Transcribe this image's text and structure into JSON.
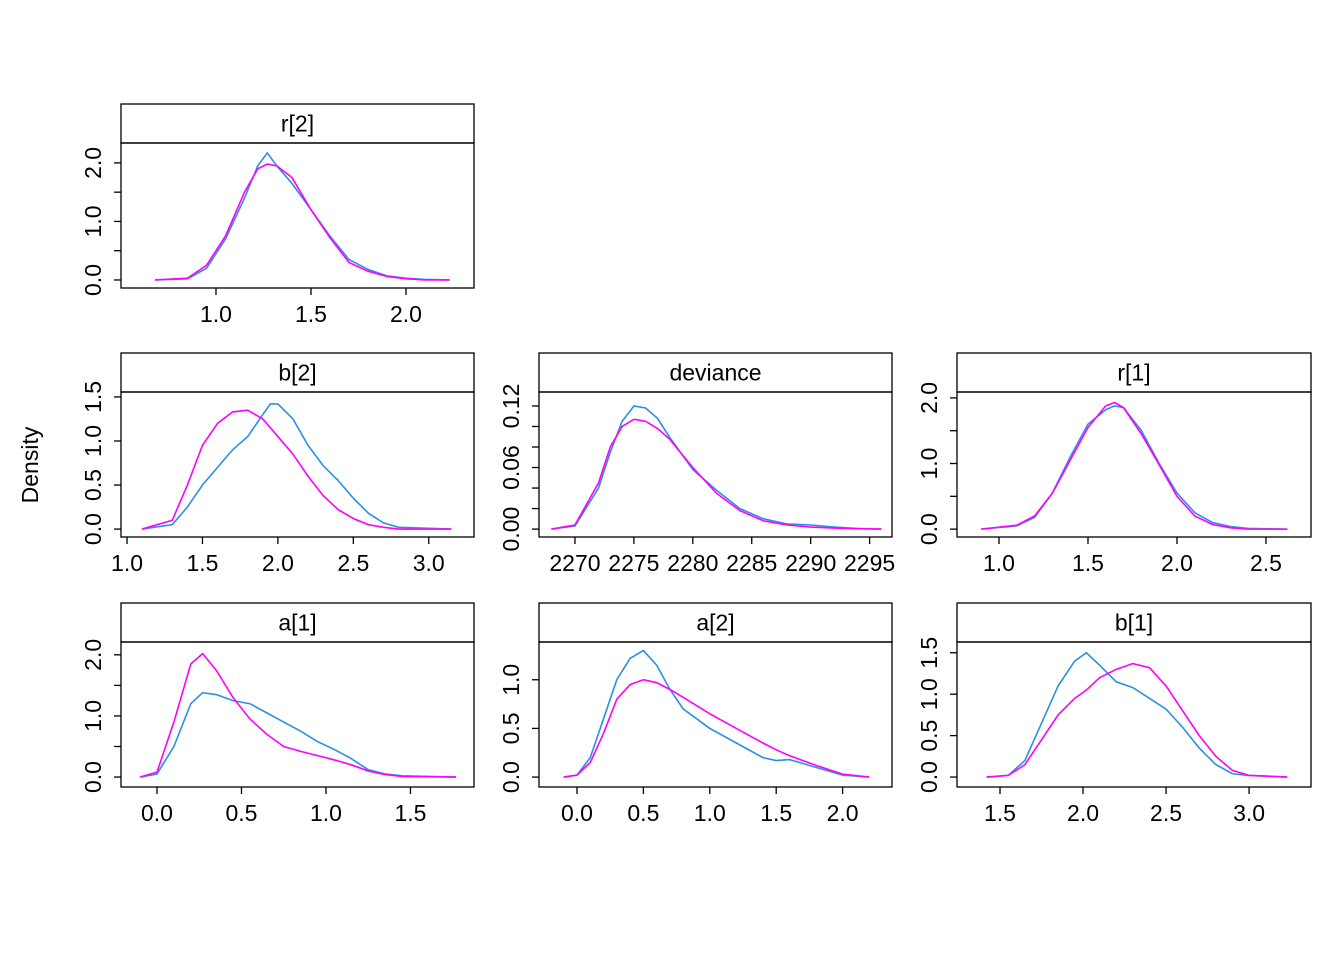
{
  "ylabel": "Density",
  "chart_data": [
    {
      "type": "line",
      "title": "r[2]",
      "x": [
        0.68,
        0.85,
        0.95,
        1.05,
        1.15,
        1.22,
        1.27,
        1.32,
        1.4,
        1.5,
        1.6,
        1.7,
        1.8,
        1.9,
        2.0,
        2.1,
        2.23
      ],
      "series": [
        {
          "color": "#2b8fe6",
          "values": [
            0,
            0.02,
            0.2,
            0.7,
            1.4,
            1.95,
            2.17,
            1.95,
            1.65,
            1.2,
            0.75,
            0.35,
            0.18,
            0.07,
            0.03,
            0.01,
            0
          ]
        },
        {
          "color": "#ff00ff",
          "values": [
            0,
            0.03,
            0.25,
            0.75,
            1.5,
            1.9,
            1.98,
            1.95,
            1.75,
            1.2,
            0.72,
            0.3,
            0.15,
            0.06,
            0.02,
            0.0,
            0
          ]
        }
      ],
      "xlim": [
        0.5,
        2.358
      ],
      "ylim": [
        -0.137,
        2.34
      ],
      "xticks": [
        {
          "value": 1,
          "label": "1.0"
        },
        {
          "value": 1.5,
          "label": "1.5"
        },
        {
          "value": 2,
          "label": "2.0"
        }
      ],
      "yticks": [
        {
          "value": 0,
          "label": "0.0"
        },
        {
          "value": 1,
          "label": "1.0"
        },
        {
          "value": 2,
          "label": "2.0"
        }
      ],
      "yminorticks": [
        0.5,
        1.5
      ]
    },
    {
      "type": "line",
      "title": "b[2]",
      "x": [
        1.1,
        1.3,
        1.4,
        1.5,
        1.6,
        1.7,
        1.8,
        1.9,
        1.95,
        2.0,
        2.1,
        2.2,
        2.3,
        2.4,
        2.5,
        2.6,
        2.7,
        2.8,
        3.15
      ],
      "series": [
        {
          "color": "#2b8fe6",
          "values": [
            0,
            0.05,
            0.25,
            0.5,
            0.7,
            0.9,
            1.05,
            1.3,
            1.42,
            1.42,
            1.25,
            0.95,
            0.72,
            0.55,
            0.35,
            0.18,
            0.07,
            0.02,
            0
          ]
        },
        {
          "color": "#ff00ff",
          "values": [
            0,
            0.1,
            0.5,
            0.95,
            1.2,
            1.33,
            1.35,
            1.25,
            1.15,
            1.05,
            0.85,
            0.6,
            0.38,
            0.22,
            0.12,
            0.05,
            0.02,
            0.0,
            0
          ]
        }
      ],
      "xlim": [
        0.96,
        3.3
      ],
      "ylim": [
        -0.09,
        1.556
      ],
      "xticks": [
        {
          "value": 1,
          "label": "1.0"
        },
        {
          "value": 1.5,
          "label": "1.5"
        },
        {
          "value": 2,
          "label": "2.0"
        },
        {
          "value": 2.5,
          "label": "2.5"
        },
        {
          "value": 3,
          "label": "3.0"
        }
      ],
      "yticks": [
        {
          "value": 0,
          "label": "0.0"
        },
        {
          "value": 0.5,
          "label": "0.5"
        },
        {
          "value": 1,
          "label": "1.0"
        },
        {
          "value": 1.5,
          "label": "1.5"
        }
      ]
    },
    {
      "type": "line",
      "title": "deviance",
      "x": [
        2268,
        2270,
        2272,
        2273,
        2274,
        2275,
        2276,
        2277,
        2278,
        2280,
        2282,
        2284,
        2286,
        2288,
        2290,
        2292,
        2294,
        2296
      ],
      "series": [
        {
          "color": "#2b8fe6",
          "values": [
            0,
            0.003,
            0.04,
            0.075,
            0.105,
            0.12,
            0.118,
            0.108,
            0.09,
            0.058,
            0.038,
            0.02,
            0.01,
            0.005,
            0.004,
            0.002,
            0.0005,
            0
          ]
        },
        {
          "color": "#ff00ff",
          "values": [
            0,
            0.004,
            0.045,
            0.08,
            0.1,
            0.107,
            0.105,
            0.098,
            0.088,
            0.06,
            0.035,
            0.018,
            0.008,
            0.004,
            0.002,
            0.001,
            0.0004,
            0
          ]
        }
      ],
      "xlim": [
        2266.95,
        2296.9
      ],
      "ylim": [
        -0.0077,
        0.1336
      ],
      "xticks": [
        2270,
        2275,
        2280,
        2285,
        2290,
        2295
      ],
      "yticks": [
        {
          "value": 0,
          "label": "0.00"
        },
        {
          "value": 0.06,
          "label": "0.06"
        },
        {
          "value": 0.12,
          "label": "0.12"
        }
      ],
      "yminorticks": [
        0.02,
        0.04,
        0.08,
        0.1
      ]
    },
    {
      "type": "line",
      "title": "r[1]",
      "x": [
        0.9,
        1.1,
        1.2,
        1.3,
        1.4,
        1.5,
        1.6,
        1.65,
        1.7,
        1.8,
        1.9,
        2.0,
        2.1,
        2.2,
        2.3,
        2.4,
        2.62
      ],
      "series": [
        {
          "color": "#2b8fe6",
          "values": [
            0,
            0.05,
            0.18,
            0.55,
            1.1,
            1.6,
            1.82,
            1.88,
            1.85,
            1.5,
            1.0,
            0.55,
            0.25,
            0.1,
            0.04,
            0.01,
            0
          ]
        },
        {
          "color": "#ff00ff",
          "values": [
            0,
            0.06,
            0.2,
            0.55,
            1.05,
            1.55,
            1.88,
            1.93,
            1.85,
            1.45,
            0.98,
            0.5,
            0.2,
            0.07,
            0.02,
            0.0,
            0
          ]
        }
      ],
      "xlim": [
        0.764,
        2.753
      ],
      "ylim": [
        -0.12,
        2.09
      ],
      "xticks": [
        {
          "value": 1,
          "label": "1.0"
        },
        {
          "value": 1.5,
          "label": "1.5"
        },
        {
          "value": 2,
          "label": "2.0"
        },
        {
          "value": 2.5,
          "label": "2.5"
        }
      ],
      "yticks": [
        {
          "value": 0,
          "label": "0.0"
        },
        {
          "value": 1,
          "label": "1.0"
        },
        {
          "value": 2,
          "label": "2.0"
        }
      ],
      "yminorticks": [
        0.5,
        1.5
      ]
    },
    {
      "type": "line",
      "title": "a[1]",
      "x": [
        -0.1,
        0.0,
        0.1,
        0.2,
        0.27,
        0.35,
        0.45,
        0.55,
        0.65,
        0.75,
        0.85,
        0.95,
        1.05,
        1.15,
        1.25,
        1.35,
        1.45,
        1.77
      ],
      "series": [
        {
          "color": "#2b8fe6",
          "values": [
            0,
            0.05,
            0.5,
            1.2,
            1.38,
            1.35,
            1.25,
            1.2,
            1.05,
            0.9,
            0.75,
            0.58,
            0.45,
            0.3,
            0.12,
            0.05,
            0.02,
            0
          ]
        },
        {
          "color": "#ff00ff",
          "values": [
            0,
            0.08,
            0.9,
            1.85,
            2.02,
            1.75,
            1.3,
            0.95,
            0.7,
            0.5,
            0.42,
            0.35,
            0.28,
            0.2,
            0.1,
            0.04,
            0.01,
            0
          ]
        }
      ],
      "xlim": [
        -0.213,
        1.876
      ],
      "ylim": [
        -0.163,
        2.21
      ],
      "xticks": [
        {
          "value": 0,
          "label": "0.0"
        },
        {
          "value": 0.5,
          "label": "0.5"
        },
        {
          "value": 1,
          "label": "1.0"
        },
        {
          "value": 1.5,
          "label": "1.5"
        }
      ],
      "yticks": [
        {
          "value": 0,
          "label": "0.0"
        },
        {
          "value": 1,
          "label": "1.0"
        },
        {
          "value": 2,
          "label": "2.0"
        }
      ],
      "yminorticks": [
        0.5,
        1.5
      ]
    },
    {
      "type": "line",
      "title": "a[2]",
      "x": [
        -0.1,
        0.0,
        0.1,
        0.2,
        0.3,
        0.4,
        0.5,
        0.6,
        0.7,
        0.8,
        1.0,
        1.2,
        1.4,
        1.5,
        1.6,
        1.8,
        2.0,
        2.2
      ],
      "series": [
        {
          "color": "#2b8fe6",
          "values": [
            0,
            0.02,
            0.2,
            0.6,
            1.0,
            1.22,
            1.3,
            1.15,
            0.9,
            0.7,
            0.5,
            0.35,
            0.2,
            0.17,
            0.18,
            0.1,
            0.02,
            0
          ]
        },
        {
          "color": "#ff00ff",
          "values": [
            0,
            0.02,
            0.15,
            0.45,
            0.8,
            0.95,
            1.0,
            0.97,
            0.9,
            0.82,
            0.65,
            0.5,
            0.35,
            0.28,
            0.22,
            0.12,
            0.03,
            0
          ]
        }
      ],
      "xlim": [
        -0.286,
        2.372
      ],
      "ylim": [
        -0.102,
        1.388
      ],
      "xticks": [
        {
          "value": 0,
          "label": "0.0"
        },
        {
          "value": 0.5,
          "label": "0.5"
        },
        {
          "value": 1,
          "label": "1.0"
        },
        {
          "value": 1.5,
          "label": "1.5"
        },
        {
          "value": 2,
          "label": "2.0"
        }
      ],
      "yticks": [
        {
          "value": 0,
          "label": "0.0"
        },
        {
          "value": 0.5,
          "label": "0.5"
        },
        {
          "value": 1,
          "label": "1.0"
        }
      ]
    },
    {
      "type": "line",
      "title": "b[1]",
      "x": [
        1.42,
        1.55,
        1.65,
        1.75,
        1.85,
        1.95,
        2.02,
        2.1,
        2.2,
        2.3,
        2.4,
        2.5,
        2.6,
        2.7,
        2.8,
        2.9,
        3.0,
        3.23
      ],
      "series": [
        {
          "color": "#2b8fe6",
          "values": [
            0,
            0.02,
            0.2,
            0.65,
            1.1,
            1.4,
            1.5,
            1.35,
            1.15,
            1.08,
            0.95,
            0.82,
            0.6,
            0.35,
            0.15,
            0.04,
            0.02,
            0
          ]
        },
        {
          "color": "#ff00ff",
          "values": [
            0,
            0.02,
            0.15,
            0.45,
            0.75,
            0.95,
            1.05,
            1.2,
            1.3,
            1.37,
            1.32,
            1.1,
            0.8,
            0.5,
            0.25,
            0.08,
            0.02,
            0
          ]
        }
      ],
      "xlim": [
        1.241,
        3.373
      ],
      "ylim": [
        -0.12,
        1.63
      ],
      "xticks": [
        {
          "value": 1.5,
          "label": "1.5"
        },
        {
          "value": 2,
          "label": "2.0"
        },
        {
          "value": 2.5,
          "label": "2.5"
        },
        {
          "value": 3,
          "label": "3.0"
        }
      ],
      "yticks": [
        {
          "value": 0,
          "label": "0.0"
        },
        {
          "value": 0.5,
          "label": "0.5"
        },
        {
          "value": 1,
          "label": "1.0"
        },
        {
          "value": 1.5,
          "label": "1.5"
        }
      ]
    }
  ]
}
